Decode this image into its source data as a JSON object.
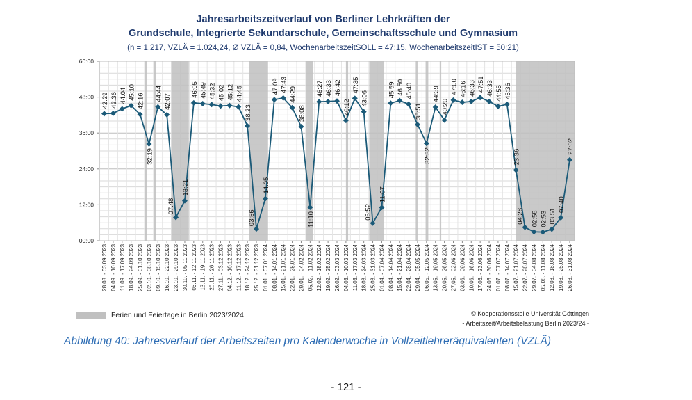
{
  "chart_data": {
    "type": "line",
    "title": "Jahresarbeitszeitverlauf von Berliner Lehrkräften der",
    "title_line2": "Grundschule, Integrierte Sekundarschule, Gemeinschaftsschule und Gymnasium",
    "subtitle": "(n = 1.217, VZLÄ = 1.024,24, Ø VZLÄ = 0,84, WochenarbeitszeitSOLL = 47:15, WochenarbeitszeitIST = 50:21)",
    "ylim": [
      "00:00",
      "60:00"
    ],
    "y_ticks": [
      "00:00",
      "12:00",
      "24:00",
      "36:00",
      "48:00",
      "60:00"
    ],
    "grid": true,
    "categories": [
      "28.08. - 03.09.2023",
      "04.09. - 10.09.2023",
      "11.09. - 17.09.2023",
      "18.09. - 24.09.2023",
      "25.09. - 01.10.2023",
      "02.10. - 08.10.2023",
      "09.10. - 15.10.2023",
      "16.10. - 22.10.2023",
      "23.10. - 29.10.2023",
      "30.10. - 05.11.2023",
      "06.11. - 12.11.2023",
      "13.11. - 19.11.2023",
      "20.11. - 26.11.2023",
      "27.11. - 03.12.2023",
      "04.12. - 10.12.2023",
      "11.12. - 17.12.2023",
      "18.12. - 24.12.2023",
      "25.12. - 31.12.2023",
      "01.01. - 07.01.2024",
      "08.01. - 14.01.2024",
      "15.01. - 21.01.2024",
      "22.01. - 28.01.2024",
      "29.01. - 04.02.2024",
      "05.02. - 11.02.2024",
      "12.02. - 18.02.2024",
      "19.02. - 25.02.2024",
      "26.02. - 03.03.2024",
      "04.03. - 10.03.2024",
      "11.03. - 17.03.2024",
      "18.03. - 24.03.2024",
      "25.03. - 31.03.2024",
      "01.04. - 07.04.2024",
      "08.04. - 14.04.2024",
      "15.04. - 21.04.2024",
      "22.04. - 28.04.2024",
      "29.04. - 05.05.2024",
      "06.05. - 12.05.2024",
      "13.05. - 19.05.2024",
      "20.05. - 26.05.2024",
      "27.05. - 02.06.2024",
      "03.06. - 09.06.2024",
      "10.06. - 16.06.2024",
      "17.06. - 23.06.2024",
      "24.06. - 30.06.2024",
      "01.07. - 07.07.2024",
      "08.07. - 14.07.2024",
      "15.07. - 21.07.2024",
      "22.07. - 28.07.2024",
      "29.07. - 04.08.2024",
      "05.08. - 11.08.2024",
      "12.08. - 18.08.2024",
      "19.08. - 25.08.2024",
      "26.08. - 31.08.2024"
    ],
    "series": [
      {
        "color": "#1b5a78",
        "values": [
          "42:29",
          "42:36",
          "44:04",
          "45:10",
          "42:16",
          "32:19",
          "44:44",
          "42:07",
          "07:48",
          "13:21",
          "46:05",
          "45:49",
          "45:32",
          "45:02",
          "45:12",
          "44:45",
          "38:23",
          "03:56",
          "14:05",
          "47:09",
          "47:43",
          "44:29",
          "38:08",
          "11:10",
          "46:27",
          "46:33",
          "46:42",
          "40:12",
          "47:35",
          "43:06",
          "05:52",
          "11:07",
          "45:59",
          "46:50",
          "45:40",
          "38:51",
          "32:32",
          "44:39",
          "40:20",
          "47:00",
          "46:16",
          "46:33",
          "47:51",
          "46:33",
          "44:55",
          "45:36",
          "23:36",
          "04:28",
          "02:58",
          "02:53",
          "03:51",
          "07:40",
          "27:02"
        ]
      }
    ],
    "holiday_bands_week_index": [
      [
        4.55,
        4.75
      ],
      [
        5.55,
        5.75
      ],
      [
        7.5,
        9.45
      ],
      [
        16.15,
        18.3
      ],
      [
        22.55,
        23.35
      ],
      [
        27.0,
        27.25
      ],
      [
        29.6,
        31.25
      ],
      [
        34.8,
        35.0
      ],
      [
        35.9,
        36.2
      ],
      [
        37.5,
        37.65
      ],
      [
        45.95,
        52.6
      ]
    ],
    "holiday_color": "#c0c0c0",
    "legend": "Ferien und Feiertage in Berlin 2023/2024"
  },
  "copyright_line1": "© Kooperationsstelle Universität Göttingen",
  "copyright_line2": "- Arbeitszeit/Arbeitsbelastung Berlin 2023/24 -",
  "caption": "Abbildung 40:  Jahresverlauf der Arbeitszeiten pro Kalenderwoche in Vollzeitlehreräquivalenten (VZLÄ)",
  "page_number": "- 121 -"
}
